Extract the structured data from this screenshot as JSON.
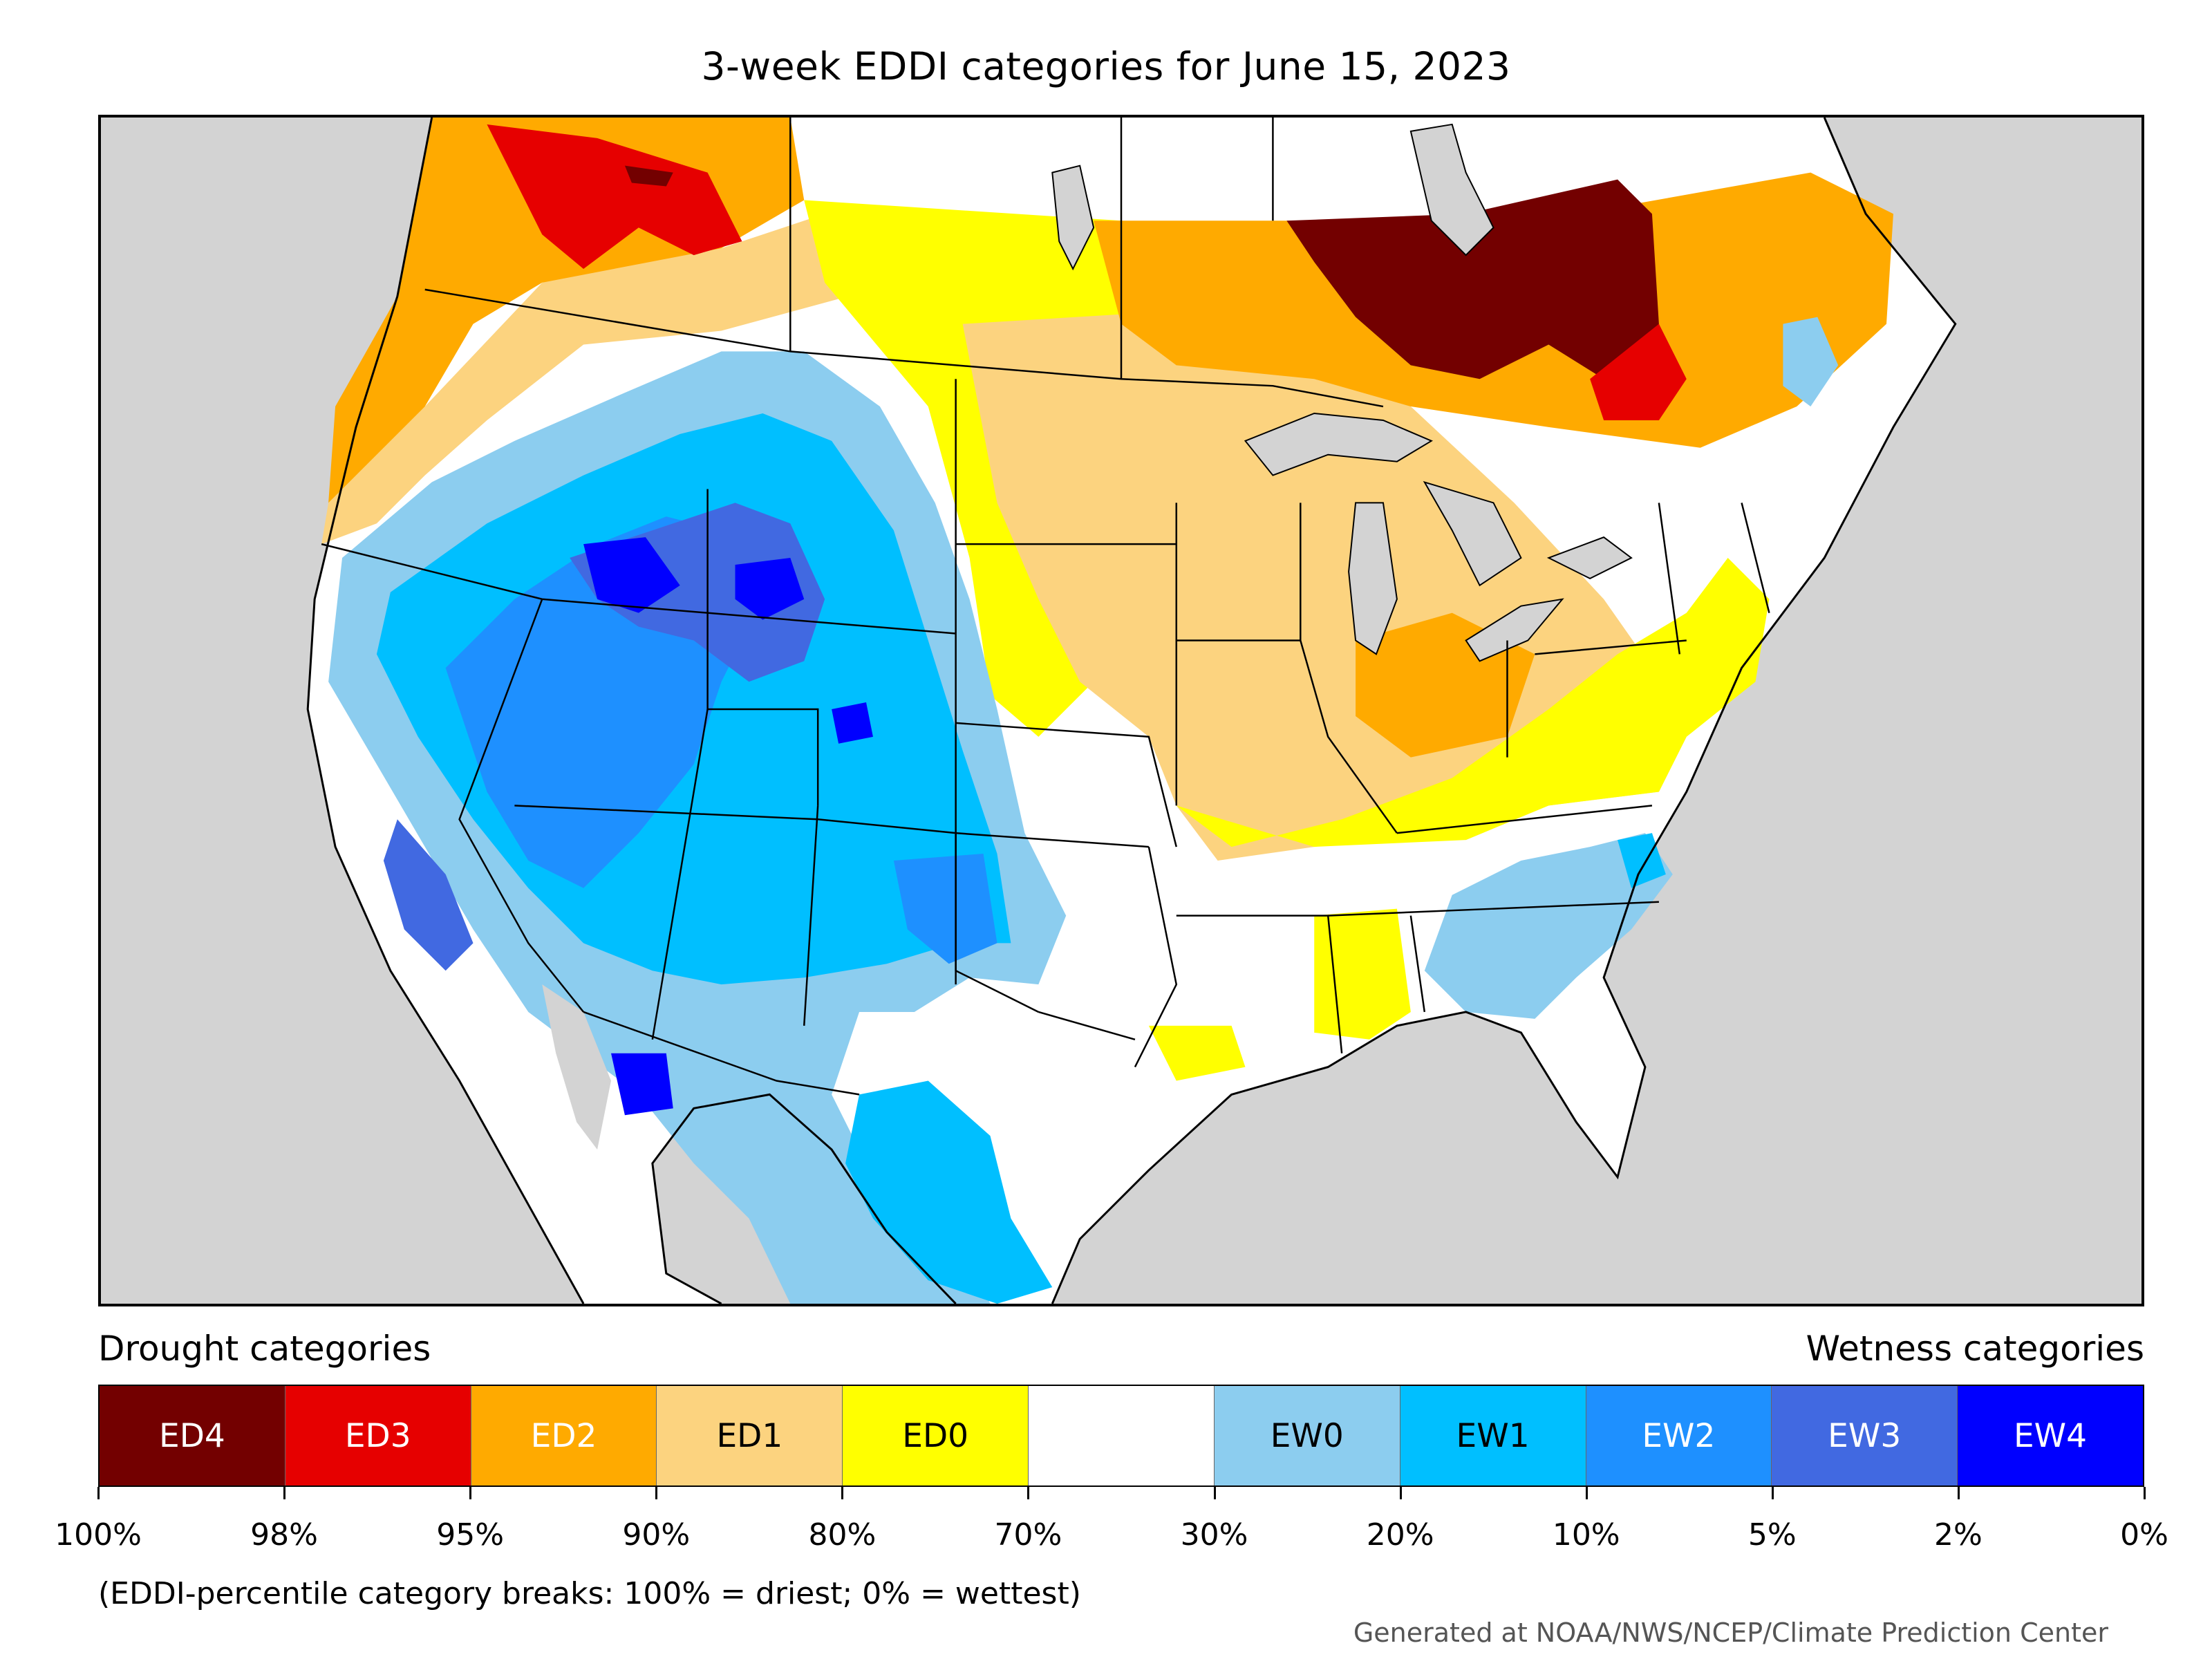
{
  "title": "3-week EDDI categories for June 15, 2023",
  "legend": {
    "drought_heading": "Drought categories",
    "wetness_heading": "Wetness categories",
    "categories": [
      {
        "label": "ED4",
        "color": "#730000",
        "text_color": "#ffffff"
      },
      {
        "label": "ED3",
        "color": "#e60000",
        "text_color": "#ffffff"
      },
      {
        "label": "ED2",
        "color": "#ffaa00",
        "text_color": "#ffffff"
      },
      {
        "label": "ED1",
        "color": "#fcd37f",
        "text_color": "#000000"
      },
      {
        "label": "ED0",
        "color": "#ffff00",
        "text_color": "#000000"
      },
      {
        "label": "",
        "color": "#ffffff",
        "text_color": "#000000"
      },
      {
        "label": "EW0",
        "color": "#8ccdef",
        "text_color": "#000000"
      },
      {
        "label": "EW1",
        "color": "#00bfff",
        "text_color": "#000000"
      },
      {
        "label": "EW2",
        "color": "#1e90ff",
        "text_color": "#ffffff"
      },
      {
        "label": "EW3",
        "color": "#4169e1",
        "text_color": "#ffffff"
      },
      {
        "label": "EW4",
        "color": "#0000ff",
        "text_color": "#ffffff"
      }
    ],
    "breaks": [
      "100%",
      "98%",
      "95%",
      "90%",
      "80%",
      "70%",
      "30%",
      "20%",
      "10%",
      "5%",
      "2%",
      "0%"
    ]
  },
  "note": "(EDDI-percentile category breaks: 100% = driest; 0% = wettest)",
  "credit": "Generated at NOAA/NWS/NCEP/Climate Prediction Center",
  "map": {
    "background_color": "#d3d3d3",
    "water_color": "#d3d3d3"
  }
}
